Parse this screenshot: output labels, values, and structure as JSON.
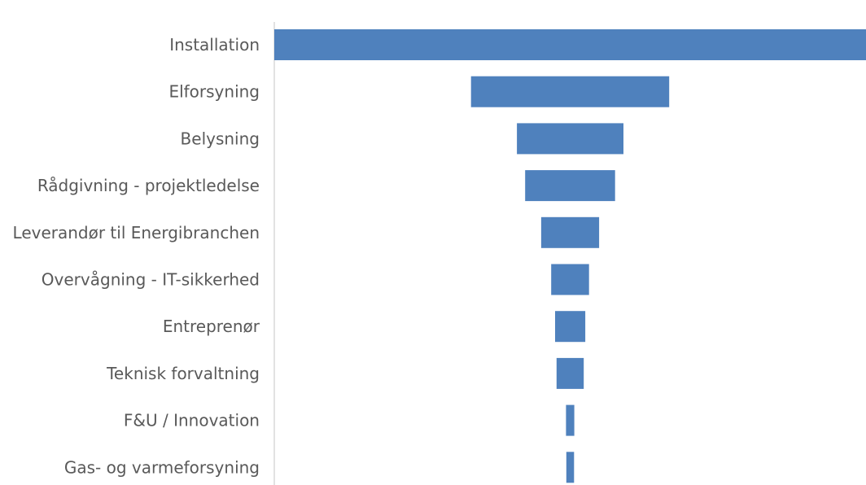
{
  "chart_data": {
    "type": "bar",
    "orientation": "horizontal-funnel",
    "title": "",
    "xlabel": "",
    "ylabel": "",
    "grid": false,
    "legend": "none",
    "bar_color": "#4f81bd",
    "categories": [
      "Installation",
      "Elforsyning",
      "Belysning",
      "Rådgivning - projektledelse",
      "Leverandør til Energibranchen",
      "Overvågning - IT-sikkerhed",
      "Entreprenør",
      "Teknisk forvaltning",
      "F&U / Innovation",
      "Gas- og varmeforsyning"
    ],
    "values": [
      100,
      33.5,
      18,
      15.2,
      9.8,
      6.4,
      5.1,
      4.6,
      1.4,
      1.3
    ]
  }
}
